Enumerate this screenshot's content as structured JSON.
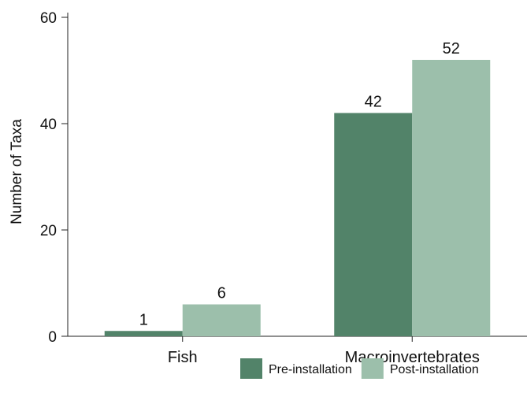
{
  "chart_data": {
    "type": "bar",
    "title": "",
    "xlabel": "",
    "ylabel": "Number of Taxa",
    "ylim": [
      0,
      60
    ],
    "yticks": [
      0,
      20,
      40,
      60
    ],
    "categories": [
      "Fish",
      "Macroinvertebrates"
    ],
    "series": [
      {
        "name": "Pre-installation",
        "values": [
          1,
          42
        ],
        "color": "#528369"
      },
      {
        "name": "Post-installation",
        "values": [
          6,
          52
        ],
        "color": "#9cbfab"
      }
    ],
    "data_labels": true,
    "grid": false,
    "legend": "bottom-right"
  }
}
